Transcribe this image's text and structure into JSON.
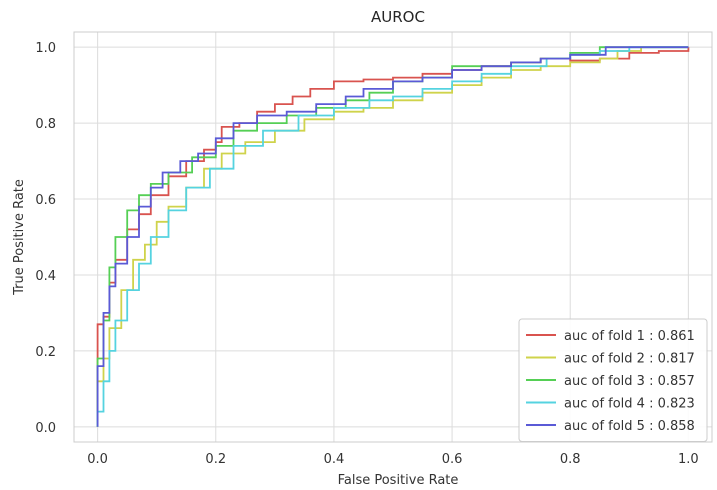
{
  "chart_data": {
    "type": "line",
    "title": "AUROC",
    "xlabel": "False Positive Rate",
    "ylabel": "True Positive Rate",
    "xlim": [
      -0.04,
      1.04
    ],
    "ylim": [
      -0.04,
      1.04
    ],
    "xticks": [
      0.0,
      0.2,
      0.4,
      0.6,
      0.8,
      1.0
    ],
    "yticks": [
      0.0,
      0.2,
      0.4,
      0.6,
      0.8,
      1.0
    ],
    "xtick_labels": [
      "0.0",
      "0.2",
      "0.4",
      "0.6",
      "0.8",
      "1.0"
    ],
    "ytick_labels": [
      "0.0",
      "0.2",
      "0.4",
      "0.6",
      "0.8",
      "1.0"
    ],
    "grid": true,
    "legend_position": "lower-right",
    "series": [
      {
        "name": "auc of fold 1 : 0.861",
        "color": "#d9534f",
        "points": [
          [
            0,
            0
          ],
          [
            0,
            0.27
          ],
          [
            0.01,
            0.29
          ],
          [
            0.02,
            0.38
          ],
          [
            0.03,
            0.44
          ],
          [
            0.05,
            0.52
          ],
          [
            0.07,
            0.56
          ],
          [
            0.09,
            0.61
          ],
          [
            0.12,
            0.66
          ],
          [
            0.15,
            0.7
          ],
          [
            0.18,
            0.73
          ],
          [
            0.2,
            0.75
          ],
          [
            0.21,
            0.79
          ],
          [
            0.24,
            0.8
          ],
          [
            0.27,
            0.83
          ],
          [
            0.3,
            0.85
          ],
          [
            0.33,
            0.87
          ],
          [
            0.36,
            0.89
          ],
          [
            0.4,
            0.91
          ],
          [
            0.45,
            0.915
          ],
          [
            0.5,
            0.92
          ],
          [
            0.55,
            0.93
          ],
          [
            0.6,
            0.94
          ],
          [
            0.65,
            0.95
          ],
          [
            0.7,
            0.96
          ],
          [
            0.75,
            0.97
          ],
          [
            0.8,
            0.965
          ],
          [
            0.85,
            0.97
          ],
          [
            0.9,
            0.985
          ],
          [
            0.95,
            0.99
          ],
          [
            1,
            1
          ]
        ]
      },
      {
        "name": "auc of fold 2 : 0.817",
        "color": "#cfd34b",
        "points": [
          [
            0,
            0
          ],
          [
            0,
            0.12
          ],
          [
            0.01,
            0.18
          ],
          [
            0.02,
            0.26
          ],
          [
            0.04,
            0.36
          ],
          [
            0.06,
            0.44
          ],
          [
            0.08,
            0.48
          ],
          [
            0.1,
            0.54
          ],
          [
            0.12,
            0.58
          ],
          [
            0.15,
            0.63
          ],
          [
            0.18,
            0.68
          ],
          [
            0.21,
            0.72
          ],
          [
            0.25,
            0.75
          ],
          [
            0.3,
            0.78
          ],
          [
            0.35,
            0.81
          ],
          [
            0.4,
            0.83
          ],
          [
            0.45,
            0.84
          ],
          [
            0.5,
            0.86
          ],
          [
            0.55,
            0.88
          ],
          [
            0.6,
            0.9
          ],
          [
            0.65,
            0.92
          ],
          [
            0.7,
            0.94
          ],
          [
            0.75,
            0.95
          ],
          [
            0.8,
            0.96
          ],
          [
            0.85,
            0.97
          ],
          [
            0.88,
            0.99
          ],
          [
            0.92,
            1
          ],
          [
            1,
            1
          ]
        ]
      },
      {
        "name": "auc of fold 3 : 0.857",
        "color": "#55cf55",
        "points": [
          [
            0,
            0
          ],
          [
            0,
            0.18
          ],
          [
            0.01,
            0.28
          ],
          [
            0.02,
            0.42
          ],
          [
            0.03,
            0.5
          ],
          [
            0.05,
            0.57
          ],
          [
            0.07,
            0.61
          ],
          [
            0.09,
            0.64
          ],
          [
            0.12,
            0.67
          ],
          [
            0.16,
            0.71
          ],
          [
            0.2,
            0.74
          ],
          [
            0.23,
            0.78
          ],
          [
            0.27,
            0.8
          ],
          [
            0.32,
            0.82
          ],
          [
            0.37,
            0.84
          ],
          [
            0.42,
            0.86
          ],
          [
            0.46,
            0.88
          ],
          [
            0.5,
            0.91
          ],
          [
            0.55,
            0.92
          ],
          [
            0.6,
            0.95
          ],
          [
            0.7,
            0.96
          ],
          [
            0.75,
            0.97
          ],
          [
            0.8,
            0.985
          ],
          [
            0.85,
            1
          ],
          [
            1,
            1
          ]
        ]
      },
      {
        "name": "auc of fold 4 : 0.823",
        "color": "#55d3e0",
        "points": [
          [
            0,
            0
          ],
          [
            0,
            0.04
          ],
          [
            0.01,
            0.12
          ],
          [
            0.02,
            0.2
          ],
          [
            0.03,
            0.28
          ],
          [
            0.05,
            0.36
          ],
          [
            0.07,
            0.43
          ],
          [
            0.09,
            0.5
          ],
          [
            0.12,
            0.57
          ],
          [
            0.15,
            0.63
          ],
          [
            0.19,
            0.68
          ],
          [
            0.23,
            0.74
          ],
          [
            0.28,
            0.78
          ],
          [
            0.34,
            0.82
          ],
          [
            0.4,
            0.84
          ],
          [
            0.46,
            0.86
          ],
          [
            0.5,
            0.87
          ],
          [
            0.55,
            0.89
          ],
          [
            0.6,
            0.91
          ],
          [
            0.65,
            0.93
          ],
          [
            0.7,
            0.95
          ],
          [
            0.76,
            0.97
          ],
          [
            0.8,
            0.98
          ],
          [
            0.85,
            0.99
          ],
          [
            0.9,
            1
          ],
          [
            1,
            1
          ]
        ]
      },
      {
        "name": "auc of fold 5 : 0.858",
        "color": "#5a5ad6",
        "points": [
          [
            0,
            0
          ],
          [
            0,
            0.16
          ],
          [
            0.01,
            0.3
          ],
          [
            0.02,
            0.37
          ],
          [
            0.03,
            0.43
          ],
          [
            0.05,
            0.5
          ],
          [
            0.07,
            0.58
          ],
          [
            0.09,
            0.63
          ],
          [
            0.11,
            0.67
          ],
          [
            0.14,
            0.7
          ],
          [
            0.17,
            0.72
          ],
          [
            0.2,
            0.76
          ],
          [
            0.23,
            0.8
          ],
          [
            0.27,
            0.82
          ],
          [
            0.32,
            0.83
          ],
          [
            0.37,
            0.85
          ],
          [
            0.42,
            0.87
          ],
          [
            0.45,
            0.89
          ],
          [
            0.5,
            0.91
          ],
          [
            0.55,
            0.92
          ],
          [
            0.6,
            0.94
          ],
          [
            0.65,
            0.95
          ],
          [
            0.7,
            0.96
          ],
          [
            0.75,
            0.97
          ],
          [
            0.8,
            0.98
          ],
          [
            0.86,
            1
          ],
          [
            1,
            1
          ]
        ]
      }
    ]
  }
}
